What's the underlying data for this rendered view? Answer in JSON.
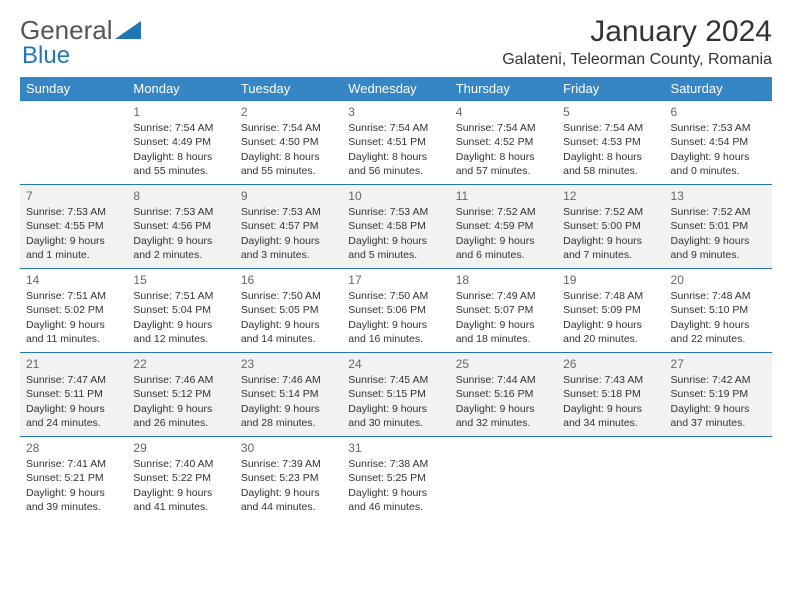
{
  "logo": {
    "text1": "General",
    "text2": "Blue"
  },
  "title": "January 2024",
  "location": "Galateni, Teleorman County, Romania",
  "day_headers": [
    "Sunday",
    "Monday",
    "Tuesday",
    "Wednesday",
    "Thursday",
    "Friday",
    "Saturday"
  ],
  "colors": {
    "header_bg": "#3686c5",
    "header_text": "#ffffff",
    "border": "#2176b8",
    "shade": "#f2f2f2",
    "text": "#333333",
    "daynum": "#666666"
  },
  "weeks": [
    {
      "shaded": false,
      "days": [
        {
          "num": "",
          "lines": []
        },
        {
          "num": "1",
          "lines": [
            "Sunrise: 7:54 AM",
            "Sunset: 4:49 PM",
            "Daylight: 8 hours",
            "and 55 minutes."
          ]
        },
        {
          "num": "2",
          "lines": [
            "Sunrise: 7:54 AM",
            "Sunset: 4:50 PM",
            "Daylight: 8 hours",
            "and 55 minutes."
          ]
        },
        {
          "num": "3",
          "lines": [
            "Sunrise: 7:54 AM",
            "Sunset: 4:51 PM",
            "Daylight: 8 hours",
            "and 56 minutes."
          ]
        },
        {
          "num": "4",
          "lines": [
            "Sunrise: 7:54 AM",
            "Sunset: 4:52 PM",
            "Daylight: 8 hours",
            "and 57 minutes."
          ]
        },
        {
          "num": "5",
          "lines": [
            "Sunrise: 7:54 AM",
            "Sunset: 4:53 PM",
            "Daylight: 8 hours",
            "and 58 minutes."
          ]
        },
        {
          "num": "6",
          "lines": [
            "Sunrise: 7:53 AM",
            "Sunset: 4:54 PM",
            "Daylight: 9 hours",
            "and 0 minutes."
          ]
        }
      ]
    },
    {
      "shaded": true,
      "days": [
        {
          "num": "7",
          "lines": [
            "Sunrise: 7:53 AM",
            "Sunset: 4:55 PM",
            "Daylight: 9 hours",
            "and 1 minute."
          ]
        },
        {
          "num": "8",
          "lines": [
            "Sunrise: 7:53 AM",
            "Sunset: 4:56 PM",
            "Daylight: 9 hours",
            "and 2 minutes."
          ]
        },
        {
          "num": "9",
          "lines": [
            "Sunrise: 7:53 AM",
            "Sunset: 4:57 PM",
            "Daylight: 9 hours",
            "and 3 minutes."
          ]
        },
        {
          "num": "10",
          "lines": [
            "Sunrise: 7:53 AM",
            "Sunset: 4:58 PM",
            "Daylight: 9 hours",
            "and 5 minutes."
          ]
        },
        {
          "num": "11",
          "lines": [
            "Sunrise: 7:52 AM",
            "Sunset: 4:59 PM",
            "Daylight: 9 hours",
            "and 6 minutes."
          ]
        },
        {
          "num": "12",
          "lines": [
            "Sunrise: 7:52 AM",
            "Sunset: 5:00 PM",
            "Daylight: 9 hours",
            "and 7 minutes."
          ]
        },
        {
          "num": "13",
          "lines": [
            "Sunrise: 7:52 AM",
            "Sunset: 5:01 PM",
            "Daylight: 9 hours",
            "and 9 minutes."
          ]
        }
      ]
    },
    {
      "shaded": false,
      "days": [
        {
          "num": "14",
          "lines": [
            "Sunrise: 7:51 AM",
            "Sunset: 5:02 PM",
            "Daylight: 9 hours",
            "and 11 minutes."
          ]
        },
        {
          "num": "15",
          "lines": [
            "Sunrise: 7:51 AM",
            "Sunset: 5:04 PM",
            "Daylight: 9 hours",
            "and 12 minutes."
          ]
        },
        {
          "num": "16",
          "lines": [
            "Sunrise: 7:50 AM",
            "Sunset: 5:05 PM",
            "Daylight: 9 hours",
            "and 14 minutes."
          ]
        },
        {
          "num": "17",
          "lines": [
            "Sunrise: 7:50 AM",
            "Sunset: 5:06 PM",
            "Daylight: 9 hours",
            "and 16 minutes."
          ]
        },
        {
          "num": "18",
          "lines": [
            "Sunrise: 7:49 AM",
            "Sunset: 5:07 PM",
            "Daylight: 9 hours",
            "and 18 minutes."
          ]
        },
        {
          "num": "19",
          "lines": [
            "Sunrise: 7:48 AM",
            "Sunset: 5:09 PM",
            "Daylight: 9 hours",
            "and 20 minutes."
          ]
        },
        {
          "num": "20",
          "lines": [
            "Sunrise: 7:48 AM",
            "Sunset: 5:10 PM",
            "Daylight: 9 hours",
            "and 22 minutes."
          ]
        }
      ]
    },
    {
      "shaded": true,
      "days": [
        {
          "num": "21",
          "lines": [
            "Sunrise: 7:47 AM",
            "Sunset: 5:11 PM",
            "Daylight: 9 hours",
            "and 24 minutes."
          ]
        },
        {
          "num": "22",
          "lines": [
            "Sunrise: 7:46 AM",
            "Sunset: 5:12 PM",
            "Daylight: 9 hours",
            "and 26 minutes."
          ]
        },
        {
          "num": "23",
          "lines": [
            "Sunrise: 7:46 AM",
            "Sunset: 5:14 PM",
            "Daylight: 9 hours",
            "and 28 minutes."
          ]
        },
        {
          "num": "24",
          "lines": [
            "Sunrise: 7:45 AM",
            "Sunset: 5:15 PM",
            "Daylight: 9 hours",
            "and 30 minutes."
          ]
        },
        {
          "num": "25",
          "lines": [
            "Sunrise: 7:44 AM",
            "Sunset: 5:16 PM",
            "Daylight: 9 hours",
            "and 32 minutes."
          ]
        },
        {
          "num": "26",
          "lines": [
            "Sunrise: 7:43 AM",
            "Sunset: 5:18 PM",
            "Daylight: 9 hours",
            "and 34 minutes."
          ]
        },
        {
          "num": "27",
          "lines": [
            "Sunrise: 7:42 AM",
            "Sunset: 5:19 PM",
            "Daylight: 9 hours",
            "and 37 minutes."
          ]
        }
      ]
    },
    {
      "shaded": false,
      "days": [
        {
          "num": "28",
          "lines": [
            "Sunrise: 7:41 AM",
            "Sunset: 5:21 PM",
            "Daylight: 9 hours",
            "and 39 minutes."
          ]
        },
        {
          "num": "29",
          "lines": [
            "Sunrise: 7:40 AM",
            "Sunset: 5:22 PM",
            "Daylight: 9 hours",
            "and 41 minutes."
          ]
        },
        {
          "num": "30",
          "lines": [
            "Sunrise: 7:39 AM",
            "Sunset: 5:23 PM",
            "Daylight: 9 hours",
            "and 44 minutes."
          ]
        },
        {
          "num": "31",
          "lines": [
            "Sunrise: 7:38 AM",
            "Sunset: 5:25 PM",
            "Daylight: 9 hours",
            "and 46 minutes."
          ]
        },
        {
          "num": "",
          "lines": []
        },
        {
          "num": "",
          "lines": []
        },
        {
          "num": "",
          "lines": []
        }
      ]
    }
  ]
}
